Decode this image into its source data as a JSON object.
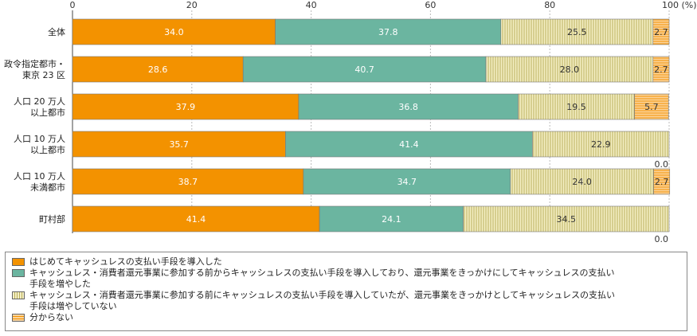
{
  "chart_data": {
    "type": "bar",
    "orientation": "horizontal-stacked-100",
    "xlim": [
      0,
      100
    ],
    "xticks": [
      "0",
      "20",
      "40",
      "60",
      "80",
      "100 (%)"
    ],
    "categories": [
      [
        "全体"
      ],
      [
        "政令指定都市・",
        "東京 23 区"
      ],
      [
        "人口 20 万人",
        "以上都市"
      ],
      [
        "人口 10 万人",
        "以上都市"
      ],
      [
        "人口 10 万人",
        "未満都市"
      ],
      [
        "町村部"
      ]
    ],
    "series": [
      {
        "name": "はじめてキャッシュレスの支払い手段を導入した",
        "color": "#f39200",
        "pattern": "solid",
        "values": [
          34.0,
          28.6,
          37.9,
          35.7,
          38.7,
          41.4
        ],
        "labels": [
          "34.0",
          "28.6",
          "37.9",
          "35.7",
          "38.7",
          "41.4"
        ]
      },
      {
        "name": "キャッシュレス・消費者還元事業に参加する前からキャッシュレスの支払い手段を導入しており、還元事業をきっかけにしてキャッシュレスの支払い手段を増やした",
        "color": "#6bb5a0",
        "pattern": "solid",
        "values": [
          37.8,
          40.7,
          36.8,
          41.4,
          34.7,
          24.1
        ],
        "labels": [
          "37.8",
          "40.7",
          "36.8",
          "41.4",
          "34.7",
          "24.1"
        ]
      },
      {
        "name": "キャッシュレス・消費者還元事業に参加する前にキャッシュレスの支払い手段を導入していたが、還元事業をきっかけとしてキャッシュレスの支払い手段は増やしていない",
        "color": "#e8e2a8",
        "pattern": "vertical",
        "values": [
          25.5,
          28.0,
          19.5,
          22.9,
          24.0,
          34.5
        ],
        "labels": [
          "25.5",
          "28.0",
          "19.5",
          "22.9",
          "24.0",
          "34.5"
        ]
      },
      {
        "name": "分からない",
        "color": "#f7b35c",
        "pattern": "horizontal",
        "values": [
          2.7,
          2.7,
          5.7,
          0.0,
          2.7,
          0.0
        ],
        "labels": [
          "2.7",
          "2.7",
          "5.7",
          "0.0",
          "2.7",
          "0.0"
        ]
      }
    ],
    "legend_lines": [
      [
        "はじめてキャッシュレスの支払い手段を導入した"
      ],
      [
        "キャッシュレス・消費者還元事業に参加する前からキャッシュレスの支払い手段を導入しており、還元事業をきっかけにしてキャッシュレスの支払い",
        "手段を増やした"
      ],
      [
        "キャッシュレス・消費者還元事業に参加する前にキャッシュレスの支払い手段を導入していたが、還元事業をきっかけとしてキャッシュレスの支払い",
        "手段は増やしていない"
      ],
      [
        "分からない"
      ]
    ],
    "grid": true,
    "legend_position": "bottom"
  }
}
